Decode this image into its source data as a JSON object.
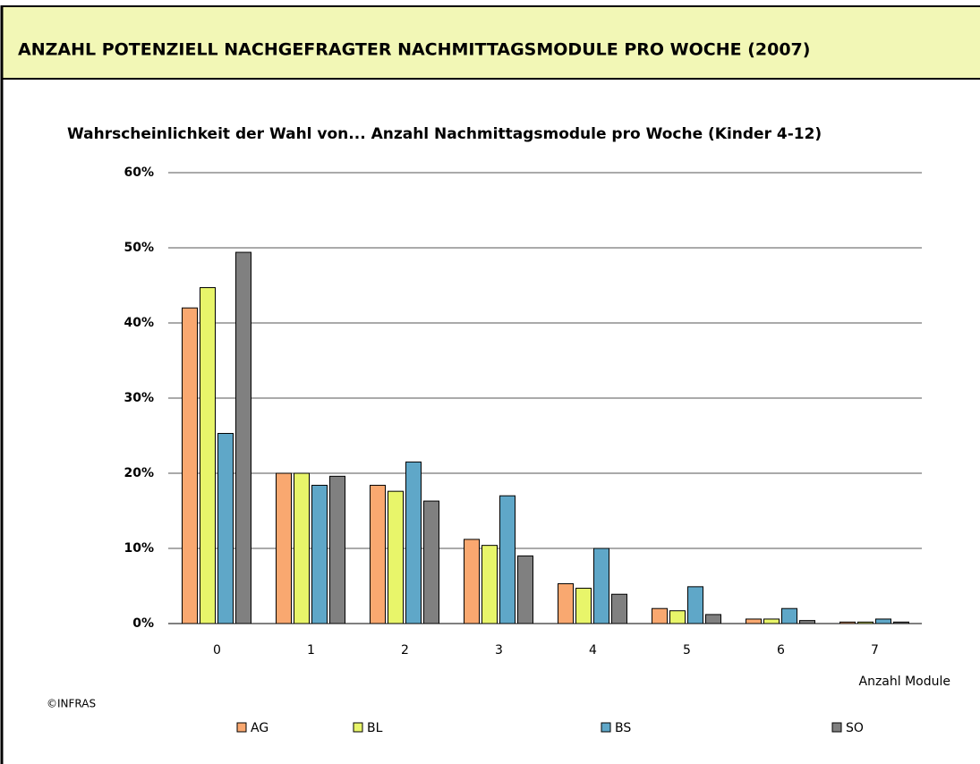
{
  "header": {
    "title": "ANZAHL POTENZIELL NACHGEFRAGTER NACHMITTAGSMODULE PRO WOCHE (2007)"
  },
  "chart_data": {
    "type": "bar",
    "title": "Wahrscheinlichkeit der Wahl von... Anzahl Nachmittagsmodule pro Woche (Kinder 4-12)",
    "x_label": "Anzahl Module",
    "source": "©INFRAS",
    "categories": [
      "0",
      "1",
      "2",
      "3",
      "4",
      "5",
      "6",
      "7"
    ],
    "series": [
      {
        "name": "AG",
        "color": "#f9a870",
        "values": [
          42,
          20,
          18.4,
          11.2,
          5.3,
          2.0,
          0.6,
          0.2
        ]
      },
      {
        "name": "BL",
        "color": "#e8f56a",
        "values": [
          44.7,
          20,
          17.6,
          10.4,
          4.7,
          1.7,
          0.6,
          0.2
        ]
      },
      {
        "name": "BS",
        "color": "#5fa7c8",
        "values": [
          25.3,
          18.4,
          21.5,
          17,
          10,
          4.9,
          2.0,
          0.6
        ]
      },
      {
        "name": "SO",
        "color": "#808080",
        "values": [
          49.4,
          19.6,
          16.3,
          9.0,
          3.9,
          1.2,
          0.4,
          0.2
        ]
      }
    ],
    "ylim": [
      0,
      60
    ],
    "yticks": [
      {
        "value": 0,
        "label": "0%"
      },
      {
        "value": 10,
        "label": "10%"
      },
      {
        "value": 20,
        "label": "20%"
      },
      {
        "value": 30,
        "label": "30%"
      },
      {
        "value": 40,
        "label": "40%"
      },
      {
        "value": 50,
        "label": "50%"
      },
      {
        "value": 60,
        "label": "60%"
      }
    ],
    "grid": true,
    "legend": "bottom"
  }
}
